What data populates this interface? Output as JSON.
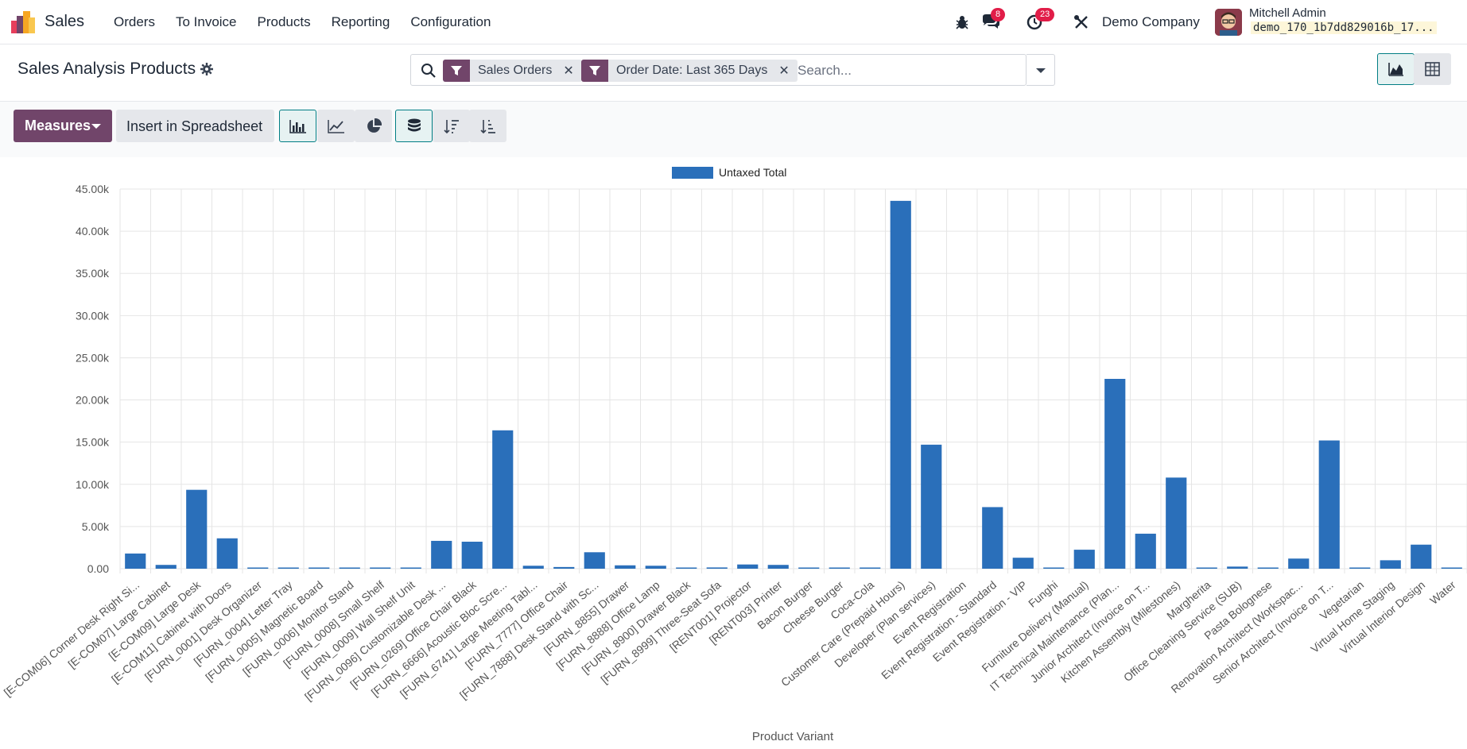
{
  "app": {
    "name": "Sales",
    "menu": [
      "Orders",
      "To Invoice",
      "Products",
      "Reporting",
      "Configuration"
    ]
  },
  "systray": {
    "messages_count": "8",
    "activities_count": "23",
    "company": "Demo Company",
    "user_name": "Mitchell Admin",
    "database": "demo_170_1b7dd829016b_17..."
  },
  "control_panel": {
    "title": "Sales Analysis Products",
    "facets": [
      "Sales Orders",
      "Order Date: Last 365 Days"
    ],
    "search_placeholder": "Search..."
  },
  "toolbar": {
    "measures_label": "Measures",
    "spreadsheet_label": "Insert in Spreadsheet"
  },
  "colors": {
    "brand": "#71456a",
    "bar": "#2a6fba",
    "active_border": "#017e84"
  },
  "chart_data": {
    "type": "bar",
    "legend": [
      "Untaxed Total"
    ],
    "legend_position": "top",
    "xlabel": "Product Variant",
    "ylabel": "",
    "ylim": [
      0,
      45000
    ],
    "y_ticks": [
      "0.00",
      "5.00k",
      "10.00k",
      "15.00k",
      "20.00k",
      "25.00k",
      "30.00k",
      "35.00k",
      "40.00k",
      "45.00k"
    ],
    "grid": true,
    "categories": [
      "[E-COM06] Corner Desk Right Si...",
      "[E-COM07] Large Cabinet",
      "[E-COM09] Large Desk",
      "[E-COM11] Cabinet with Doors",
      "[FURN_0001] Desk Organizer",
      "[FURN_0004] Letter Tray",
      "[FURN_0005] Magnetic Board",
      "[FURN_0006] Monitor Stand",
      "[FURN_0008] Small Shelf",
      "[FURN_0009] Wall Shelf Unit",
      "[FURN_0096] Customizable Desk ...",
      "[FURN_0269] Office Chair Black",
      "[FURN_6666] Acoustic Bloc Scre...",
      "[FURN_6741] Large Meeting Tabl...",
      "[FURN_7777] Office Chair",
      "[FURN_7888] Desk Stand with Sc...",
      "[FURN_8855] Drawer",
      "[FURN_8888] Office Lamp",
      "[FURN_8900] Drawer Black",
      "[FURN_8999] Three-Seat Sofa",
      "[RENT001] Projector",
      "[RENT003] Printer",
      "Bacon Burger",
      "Cheese Burger",
      "Coca-Cola",
      "Customer Care (Prepaid Hours)",
      "Developer (Plan services)",
      "Event Registration",
      "Event Registration - Standard",
      "Event Registration - VIP",
      "Funghi",
      "Furniture Delivery (Manual)",
      "IT Technical Maintenance (Plan...",
      "Junior Architect (Invoice on T...",
      "Kitchen Assembly (Milestones)",
      "Margherita",
      "Office Cleaning Service (SUB)",
      "Pasta Bolognese",
      "Renovation Architect (Workspac...",
      "Senior Architect (Invoice on T...",
      "Vegetarian",
      "Virtual Home Staging",
      "Virtual Interior Design",
      "Water"
    ],
    "series": [
      {
        "name": "Untaxed Total",
        "values": [
          1800,
          450,
          9350,
          3600,
          50,
          30,
          40,
          40,
          40,
          60,
          3300,
          3200,
          16400,
          350,
          200,
          1950,
          400,
          350,
          30,
          150,
          500,
          450,
          20,
          20,
          10,
          43600,
          14700,
          0,
          7300,
          1300,
          80,
          2250,
          22500,
          4150,
          10800,
          40,
          250,
          30,
          1200,
          15200,
          30,
          1000,
          2850,
          40
        ]
      }
    ]
  }
}
